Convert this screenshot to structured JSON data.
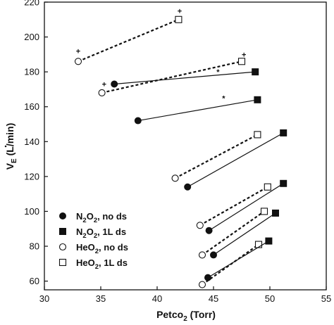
{
  "chart_data": {
    "type": "scatter",
    "xlabel": "Petco",
    "xlabel_sub": "2",
    "xlabel_unit": " (Torr)",
    "ylabel": "V",
    "ylabel_sub": "E",
    "ylabel_unit": " (L/min)",
    "xlim": [
      30,
      55
    ],
    "ylim": [
      55,
      220
    ],
    "xticks": [
      30,
      35,
      40,
      45,
      50,
      55
    ],
    "yticks": [
      60,
      80,
      100,
      120,
      140,
      160,
      180,
      200,
      220
    ],
    "grid": false,
    "legend_position": "bottom-left",
    "legend": [
      {
        "marker": "filled-circle",
        "label_main": "N",
        "label_sub1": "2",
        "label_mid": "O",
        "label_sub2": "2",
        "label_tail": ", no ds"
      },
      {
        "marker": "filled-square",
        "label_main": "N",
        "label_sub1": "2",
        "label_mid": "O",
        "label_sub2": "2",
        "label_tail": ", 1L ds"
      },
      {
        "marker": "open-circle",
        "label_main": "HeO",
        "label_sub1": "2",
        "label_mid": "",
        "label_sub2": "",
        "label_tail": ", no ds"
      },
      {
        "marker": "open-square",
        "label_main": "HeO",
        "label_sub1": "2",
        "label_mid": "",
        "label_sub2": "",
        "label_tail": ", 1L ds"
      }
    ],
    "pairs": [
      {
        "gas": "HeO2",
        "no_ds": [
          33.0,
          186
        ],
        "ds_1L": [
          41.9,
          210
        ],
        "line": "dashed",
        "annotations": [
          {
            "text": "+",
            "x": 33.0,
            "y": 192
          },
          {
            "text": "+",
            "x": 42.0,
            "y": 215
          }
        ]
      },
      {
        "gas": "HeO2",
        "no_ds": [
          35.1,
          168
        ],
        "ds_1L": [
          47.5,
          186
        ],
        "line": "dashed",
        "annotations": [
          {
            "text": "+",
            "x": 35.3,
            "y": 173
          },
          {
            "text": "+",
            "x": 47.7,
            "y": 190
          }
        ]
      },
      {
        "gas": "N2O2",
        "no_ds": [
          36.2,
          173
        ],
        "ds_1L": [
          48.7,
          180
        ],
        "line": "solid",
        "annotations": [
          {
            "text": "*",
            "x": 45.4,
            "y": 180
          }
        ]
      },
      {
        "gas": "N2O2",
        "no_ds": [
          38.3,
          152
        ],
        "ds_1L": [
          48.9,
          164
        ],
        "line": "solid",
        "annotations": [
          {
            "text": "*",
            "x": 45.9,
            "y": 165
          }
        ]
      },
      {
        "gas": "HeO2",
        "no_ds": [
          41.6,
          119
        ],
        "ds_1L": [
          48.9,
          144
        ],
        "line": "dashed",
        "annotations": []
      },
      {
        "gas": "N2O2",
        "no_ds": [
          42.7,
          114
        ],
        "ds_1L": [
          51.2,
          145
        ],
        "line": "solid",
        "annotations": []
      },
      {
        "gas": "HeO2",
        "no_ds": [
          43.8,
          92
        ],
        "ds_1L": [
          49.8,
          114
        ],
        "line": "dashed",
        "annotations": []
      },
      {
        "gas": "N2O2",
        "no_ds": [
          44.6,
          89
        ],
        "ds_1L": [
          51.2,
          116
        ],
        "line": "solid",
        "annotations": []
      },
      {
        "gas": "HeO2",
        "no_ds": [
          44.0,
          75
        ],
        "ds_1L": [
          49.5,
          100
        ],
        "line": "dashed",
        "annotations": []
      },
      {
        "gas": "N2O2",
        "no_ds": [
          45.0,
          75
        ],
        "ds_1L": [
          50.5,
          99
        ],
        "line": "solid",
        "annotations": []
      },
      {
        "gas": "HeO2",
        "no_ds": [
          44.0,
          58
        ],
        "ds_1L": [
          49.0,
          81
        ],
        "line": "dashed",
        "annotations": []
      },
      {
        "gas": "N2O2",
        "no_ds": [
          44.5,
          62
        ],
        "ds_1L": [
          49.9,
          83
        ],
        "line": "solid",
        "annotations": []
      }
    ]
  }
}
